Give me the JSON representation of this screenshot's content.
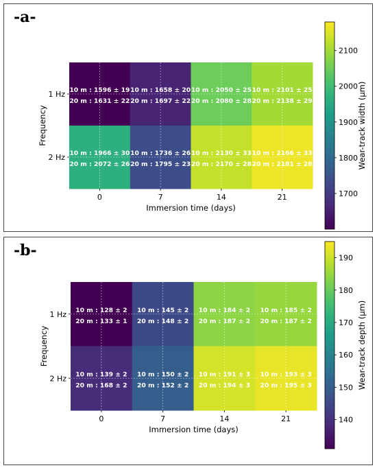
{
  "panels": [
    {
      "label": "-a-",
      "chart_data": {
        "type": "heatmap",
        "xlabel": "Immersion time (days)",
        "ylabel": "Frequency",
        "x_categories": [
          "0",
          "7",
          "14",
          "21"
        ],
        "y_categories": [
          "1 Hz",
          "2 Hz"
        ],
        "colorbar_label": "Wear-track width (µm)",
        "colorbar_range": [
          1600,
          2180
        ],
        "colorbar_ticks": [
          1700,
          1800,
          1900,
          2000,
          2100
        ],
        "cell_values": [
          [
            1596,
            1658,
            2050,
            2101
          ],
          [
            1966,
            1736,
            2130,
            2166
          ]
        ],
        "cell_lines": [
          [
            [
              "10 m : 1596 ± 19",
              "20 m : 1631 ± 22"
            ],
            [
              "10 m : 1658 ± 20",
              "20 m : 1697 ± 22"
            ],
            [
              "10 m : 2050 ± 25",
              "20 m : 2080 ± 28"
            ],
            [
              "10 m : 2101 ± 25",
              "20 m : 2138 ± 29"
            ]
          ],
          [
            [
              "10 m : 1966 ± 30",
              "20 m : 2072 ± 26"
            ],
            [
              "10 m : 1736 ± 26",
              "20 m : 1795 ± 23"
            ],
            [
              "10 m : 2130 ± 33",
              "20 m : 2170 ± 28"
            ],
            [
              "10 m : 2166 ± 33",
              "20 m : 2181 ± 28"
            ]
          ]
        ]
      }
    },
    {
      "label": "-b-",
      "chart_data": {
        "type": "heatmap",
        "xlabel": "Immersion time (days)",
        "ylabel": "Frequency",
        "x_categories": [
          "0",
          "7",
          "14",
          "21"
        ],
        "y_categories": [
          "1 Hz",
          "2 Hz"
        ],
        "colorbar_label": "Wear-track depth (µm)",
        "colorbar_range": [
          131,
          195
        ],
        "colorbar_ticks": [
          140,
          150,
          160,
          170,
          180,
          190
        ],
        "cell_values": [
          [
            128,
            145,
            184,
            185
          ],
          [
            139,
            150,
            191,
            193
          ]
        ],
        "cell_lines": [
          [
            [
              "10 m : 128 ± 2",
              "20 m : 133 ± 1"
            ],
            [
              "10 m : 145 ± 2",
              "20 m : 148 ± 2"
            ],
            [
              "10 m : 184 ± 2",
              "20 m : 187 ± 2"
            ],
            [
              "10 m : 185 ± 2",
              "20 m : 187 ± 2"
            ]
          ],
          [
            [
              "10 m : 139 ± 2",
              "20 m : 168 ± 2"
            ],
            [
              "10 m : 150 ± 2",
              "20 m : 152 ± 2"
            ],
            [
              "10 m : 191 ± 3",
              "20 m : 194 ± 3"
            ],
            [
              "10 m : 193 ± 3",
              "20 m : 195 ± 3"
            ]
          ]
        ]
      }
    }
  ]
}
